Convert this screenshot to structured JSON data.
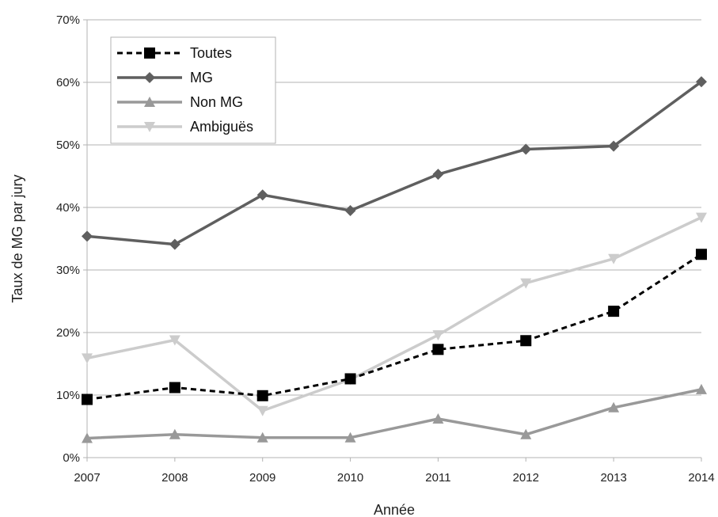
{
  "chart_data": {
    "type": "line",
    "xlabel": "Année",
    "ylabel": "Taux de MG par jury",
    "categories": [
      "2007",
      "2008",
      "2009",
      "2010",
      "2011",
      "2012",
      "2013",
      "2014"
    ],
    "ylim": [
      0,
      70
    ],
    "yticks": [
      0,
      10,
      20,
      30,
      40,
      50,
      60,
      70
    ],
    "ytick_labels": [
      "0%",
      "10%",
      "20%",
      "30%",
      "40%",
      "50%",
      "60%",
      "70%"
    ],
    "grid": true,
    "legend_position": "top-left",
    "series": [
      {
        "name": "Toutes",
        "values": [
          9.3,
          11.2,
          9.9,
          12.6,
          17.3,
          18.7,
          23.4,
          32.5
        ],
        "color": "#000000",
        "dash": true,
        "marker": "square"
      },
      {
        "name": "MG",
        "values": [
          35.4,
          34.1,
          42.0,
          39.5,
          45.3,
          49.3,
          49.8,
          60.1
        ],
        "color": "#5f5f5f",
        "dash": false,
        "marker": "diamond"
      },
      {
        "name": "Non MG",
        "values": [
          3.1,
          3.7,
          3.2,
          3.2,
          6.2,
          3.7,
          8.0,
          10.9
        ],
        "color": "#999999",
        "dash": false,
        "marker": "triangle-up"
      },
      {
        "name": "Ambiguës",
        "values": [
          15.9,
          18.8,
          7.5,
          12.5,
          19.6,
          27.9,
          31.8,
          38.4
        ],
        "color": "#cccccc",
        "dash": false,
        "marker": "triangle-down"
      }
    ]
  }
}
